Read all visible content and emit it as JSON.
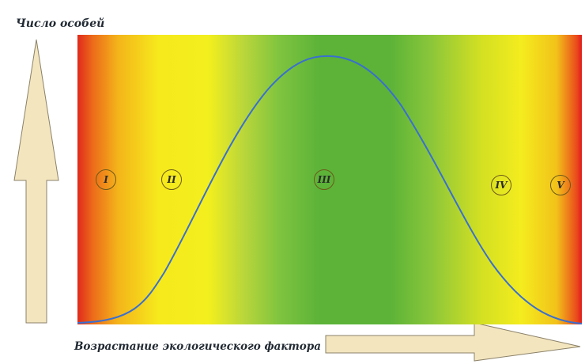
{
  "chart": {
    "y_axis_label": "Число особей",
    "x_axis_label": "Возрастание экологического фактора",
    "zones": [
      "I",
      "II",
      "III",
      "IV",
      "V"
    ],
    "colors": {
      "extreme": "#e01c1c",
      "suboptimal": "#f6e91c",
      "optimum": "#5cb338",
      "curve": "#3a6fd0",
      "arrow_fill": "#f3e6bf",
      "arrow_stroke": "#8b8168"
    }
  }
}
